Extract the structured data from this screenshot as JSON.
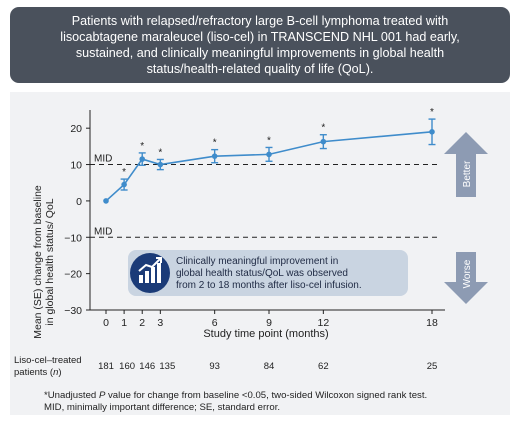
{
  "banner": {
    "line1": "Patients with relapsed/refractory large B-cell lymphoma treated with",
    "line2": "lisocabtagene maraleucel (liso-cel) in TRANSCEND NHL 001 had early,",
    "line3": "sustained, and clinically meaningful improvements in global health",
    "line4": "status/health-related quality of life (QoL)."
  },
  "chart_data": {
    "type": "line",
    "ylabel_line1": "Mean (SE) change from baseline",
    "ylabel_line2": "in global health status/ QoL",
    "xlabel": "Study time point (months)",
    "ylim": [
      -30,
      25
    ],
    "yticks": [
      -30,
      -20,
      -10,
      0,
      10,
      20
    ],
    "x": [
      0,
      1,
      2,
      3,
      6,
      9,
      12,
      18
    ],
    "x_tick_labels": [
      "0",
      "1",
      "2",
      "3",
      "6",
      "9",
      "12",
      "18"
    ],
    "series": [
      {
        "values": [
          0,
          4.5,
          11.5,
          10.0,
          12.3,
          12.8,
          16.3,
          19.0
        ],
        "se": [
          0,
          1.5,
          1.7,
          1.4,
          1.8,
          1.9,
          1.9,
          3.5
        ],
        "significance": [
          "",
          "*",
          "*",
          "*",
          "*",
          "*",
          "*",
          "*"
        ],
        "color": "#3f8ccb"
      }
    ],
    "reference_lines": [
      {
        "label": "MID",
        "y": 10
      },
      {
        "label": "MID",
        "y": -10
      }
    ],
    "n_label_line1": "Liso-cel–treated",
    "n_label_line2": "patients (",
    "n_label_italic": "n",
    "n_label_close": ")",
    "n_values": [
      "181",
      "160",
      "146",
      "135",
      "93",
      "84",
      "62",
      "25"
    ],
    "better_label": "Better",
    "worse_label": "Worse",
    "callout_line1": "Clinically meaningful improvement in",
    "callout_line2": "global health status/QoL was observed",
    "callout_line3": "from 2 to 18 months after liso-cel infusion.",
    "colors": {
      "series": "#3f8ccb",
      "arrow": "#8d9bb3",
      "callout_bg": "#c9d4e1",
      "callout_icon": "#1b3b78"
    }
  },
  "footnotes": {
    "line1_pre": "*Unadjusted ",
    "line1_italic": "P",
    "line1_post": " value for change from baseline <0.05, two-sided Wilcoxon signed rank test.",
    "line2": "MID, minimally important difference; SE, standard error."
  }
}
